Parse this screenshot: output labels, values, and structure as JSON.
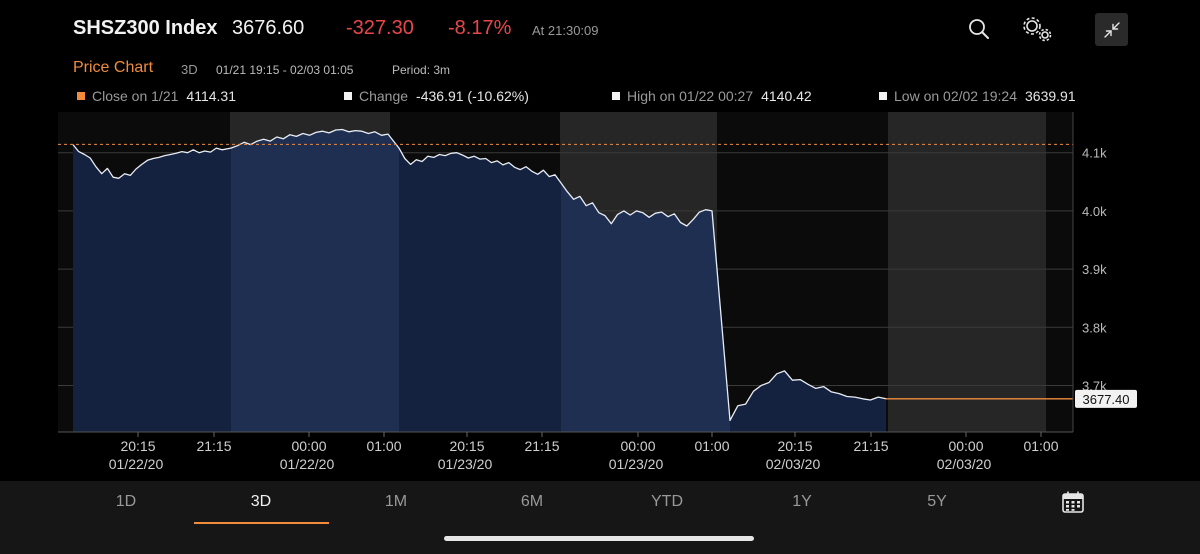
{
  "header": {
    "title": "SHSZ300 Index",
    "price": "3676.60",
    "change": "-327.30",
    "change_pct": "-8.17%",
    "time": "At 21:30:09",
    "negative_color": "#e8474a"
  },
  "toolbar": {
    "search_icon": "search-icon",
    "settings_icon": "settings-icon",
    "collapse_icon": "collapse-icon"
  },
  "subheader": {
    "title": "Price Chart",
    "range": "3D",
    "dates": "01/21 19:15 - 02/03 01:05",
    "period": "Period: 3m"
  },
  "legend": {
    "close_label": "Close on 1/21",
    "close_value": "4114.31",
    "change_label": "Change",
    "change_value": "-436.91 (-10.62%)",
    "high_label": "High on 01/22 00:27",
    "high_value": "4140.42",
    "low_label": "Low on 02/02 19:24",
    "low_value": "3639.91"
  },
  "ranges": {
    "items": [
      "1D",
      "3D",
      "1M",
      "6M",
      "YTD",
      "1Y",
      "5Y"
    ],
    "active": "3D",
    "calendar_icon": "calendar-icon"
  },
  "colors": {
    "accent": "#f08c3c",
    "area_dark": "#14213f",
    "area_light": "#1f2f52",
    "line": "#e8ecf4"
  },
  "chart_data": {
    "type": "area",
    "y_ticks": [
      "4.1k",
      "4.0k",
      "3.9k",
      "3.8k",
      "3.7k"
    ],
    "y_tick_values": [
      4100,
      4000,
      3900,
      3800,
      3700
    ],
    "ylim": [
      3620,
      4170
    ],
    "x_ticks": [
      {
        "time": "20:15",
        "date": "01/22/20"
      },
      {
        "time": "21:15",
        "date": ""
      },
      {
        "time": "00:00",
        "date": "01/22/20"
      },
      {
        "time": "01:00",
        "date": ""
      },
      {
        "time": "20:15",
        "date": "01/23/20"
      },
      {
        "time": "21:15",
        "date": ""
      },
      {
        "time": "00:00",
        "date": "01/23/20"
      },
      {
        "time": "01:00",
        "date": ""
      },
      {
        "time": "20:15",
        "date": "02/03/20"
      },
      {
        "time": "21:15",
        "date": ""
      },
      {
        "time": "00:00",
        "date": "02/03/20"
      },
      {
        "time": "01:00",
        "date": ""
      }
    ],
    "prev_close": 4114.31,
    "last_value": "3677.40",
    "sessions": [
      [
        4114,
        4102,
        4097,
        4091,
        4076,
        4064,
        4073,
        4058,
        4056,
        4064,
        4061,
        4072,
        4080,
        4087,
        4090,
        4092,
        4095,
        4097,
        4099,
        4102,
        4100,
        4105,
        4100,
        4103,
        4101,
        4108,
        4105
      ],
      [
        4108,
        4112,
        4118,
        4114,
        4120,
        4123,
        4120,
        4127,
        4124,
        4131,
        4128,
        4133,
        4130,
        4135,
        4137,
        4134,
        4139,
        4140,
        4136,
        4138,
        4137,
        4133,
        4136,
        4130,
        4132
      ],
      [
        4108,
        4090,
        4080,
        4088,
        4085,
        4094,
        4092,
        4097,
        4095,
        4099,
        4100,
        4096,
        4091,
        4094,
        4089,
        4090,
        4083,
        4086,
        4079,
        4083,
        4075,
        4071,
        4076,
        4068,
        4063,
        4070,
        4059,
        4062
      ],
      [
        4048,
        4033,
        4020,
        4025,
        4009,
        4014,
        3997,
        3992,
        3978,
        3994,
        4000,
        3993,
        4000,
        3997,
        3989,
        3996,
        3998,
        3990,
        3995,
        3980,
        3974,
        3985,
        3998,
        4002,
        4000
      ],
      [
        3640,
        3665,
        3668,
        3690,
        3700,
        3705,
        3720,
        3725,
        3709,
        3710,
        3702,
        3695,
        3698,
        3689,
        3686,
        3681,
        3680,
        3677,
        3675,
        3680,
        3677
      ]
    ],
    "grid": true
  }
}
